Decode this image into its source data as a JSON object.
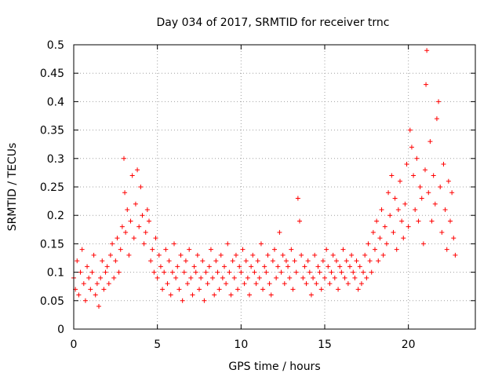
{
  "chart_data": {
    "type": "scatter",
    "title": "Day 034 of 2017, SRMTID for receiver trnc",
    "xlabel": "GPS time / hours",
    "ylabel": "SRMTID / TECUs",
    "xlim": [
      0,
      24
    ],
    "ylim": [
      0,
      0.5
    ],
    "xticks": [
      0,
      5,
      10,
      15,
      20
    ],
    "xtick_labels": [
      "0",
      "5",
      "10",
      "15",
      "20"
    ],
    "yticks": [
      0,
      0.05,
      0.1,
      0.15,
      0.2,
      0.25,
      0.3,
      0.35,
      0.4,
      0.45,
      0.5
    ],
    "ytick_labels": [
      "0",
      "0.05",
      "0.1",
      "0.15",
      "0.2",
      "0.25",
      "0.3",
      "0.35",
      "0.4",
      "0.45",
      "0.5"
    ],
    "grid": true,
    "marker": "+",
    "color": "#ff0000",
    "series": [
      {
        "name": "SRMTID trnc",
        "x": [
          0.0,
          0.1,
          0.2,
          0.3,
          0.4,
          0.5,
          0.6,
          0.7,
          0.8,
          0.9,
          1.0,
          1.1,
          1.2,
          1.3,
          1.4,
          1.5,
          1.6,
          1.7,
          1.8,
          1.9,
          2.0,
          2.1,
          2.2,
          2.3,
          2.4,
          2.5,
          2.6,
          2.7,
          2.8,
          2.9,
          3.0,
          3.05,
          3.1,
          3.2,
          3.3,
          3.4,
          3.5,
          3.6,
          3.7,
          3.8,
          3.9,
          4.0,
          4.1,
          4.2,
          4.3,
          4.4,
          4.5,
          4.6,
          4.7,
          4.8,
          4.9,
          5.0,
          5.1,
          5.2,
          5.3,
          5.4,
          5.5,
          5.6,
          5.7,
          5.8,
          5.9,
          6.0,
          6.1,
          6.2,
          6.3,
          6.4,
          6.5,
          6.6,
          6.7,
          6.8,
          6.9,
          7.0,
          7.1,
          7.2,
          7.3,
          7.4,
          7.5,
          7.6,
          7.7,
          7.8,
          7.9,
          8.0,
          8.1,
          8.2,
          8.3,
          8.4,
          8.5,
          8.6,
          8.7,
          8.8,
          8.9,
          9.0,
          9.1,
          9.2,
          9.3,
          9.4,
          9.5,
          9.6,
          9.7,
          9.8,
          9.9,
          10.0,
          10.1,
          10.2,
          10.3,
          10.4,
          10.5,
          10.6,
          10.7,
          10.8,
          10.9,
          11.0,
          11.1,
          11.2,
          11.3,
          11.4,
          11.5,
          11.6,
          11.7,
          11.8,
          11.9,
          12.0,
          12.1,
          12.2,
          12.3,
          12.4,
          12.5,
          12.6,
          12.7,
          12.8,
          12.9,
          13.0,
          13.1,
          13.2,
          13.3,
          13.4,
          13.5,
          13.6,
          13.7,
          13.8,
          13.9,
          14.0,
          14.1,
          14.2,
          14.3,
          14.4,
          14.5,
          14.6,
          14.7,
          14.8,
          14.9,
          15.0,
          15.1,
          15.2,
          15.3,
          15.4,
          15.5,
          15.6,
          15.7,
          15.8,
          15.9,
          16.0,
          16.1,
          16.2,
          16.3,
          16.4,
          16.5,
          16.6,
          16.7,
          16.8,
          16.9,
          17.0,
          17.1,
          17.2,
          17.3,
          17.4,
          17.5,
          17.6,
          17.7,
          17.8,
          17.9,
          18.0,
          18.1,
          18.2,
          18.3,
          18.4,
          18.5,
          18.6,
          18.7,
          18.8,
          18.9,
          19.0,
          19.1,
          19.2,
          19.3,
          19.4,
          19.5,
          19.6,
          19.7,
          19.8,
          19.9,
          20.0,
          20.1,
          20.2,
          20.3,
          20.4,
          20.5,
          20.6,
          20.7,
          20.8,
          20.9,
          21.0,
          21.05,
          21.1,
          21.2,
          21.3,
          21.4,
          21.5,
          21.6,
          21.7,
          21.8,
          21.9,
          22.0,
          22.1,
          22.2,
          22.3,
          22.4,
          22.5,
          22.6,
          22.7,
          22.8
        ],
        "y": [
          0.09,
          0.07,
          0.12,
          0.06,
          0.1,
          0.14,
          0.08,
          0.05,
          0.11,
          0.09,
          0.07,
          0.1,
          0.13,
          0.06,
          0.08,
          0.04,
          0.09,
          0.12,
          0.07,
          0.1,
          0.11,
          0.08,
          0.13,
          0.15,
          0.09,
          0.12,
          0.16,
          0.1,
          0.14,
          0.18,
          0.3,
          0.24,
          0.17,
          0.21,
          0.13,
          0.19,
          0.27,
          0.16,
          0.22,
          0.28,
          0.18,
          0.25,
          0.2,
          0.15,
          0.17,
          0.21,
          0.19,
          0.12,
          0.14,
          0.1,
          0.16,
          0.09,
          0.13,
          0.11,
          0.07,
          0.1,
          0.14,
          0.08,
          0.12,
          0.06,
          0.1,
          0.15,
          0.09,
          0.11,
          0.07,
          0.13,
          0.05,
          0.1,
          0.12,
          0.08,
          0.14,
          0.09,
          0.06,
          0.11,
          0.1,
          0.13,
          0.07,
          0.09,
          0.12,
          0.05,
          0.1,
          0.08,
          0.11,
          0.14,
          0.09,
          0.06,
          0.12,
          0.1,
          0.07,
          0.13,
          0.09,
          0.11,
          0.08,
          0.15,
          0.1,
          0.06,
          0.12,
          0.09,
          0.13,
          0.07,
          0.11,
          0.1,
          0.14,
          0.08,
          0.12,
          0.09,
          0.06,
          0.11,
          0.13,
          0.1,
          0.08,
          0.12,
          0.09,
          0.15,
          0.07,
          0.11,
          0.1,
          0.13,
          0.08,
          0.06,
          0.12,
          0.14,
          0.09,
          0.11,
          0.17,
          0.1,
          0.13,
          0.08,
          0.12,
          0.11,
          0.09,
          0.14,
          0.07,
          0.12,
          0.1,
          0.23,
          0.19,
          0.13,
          0.09,
          0.11,
          0.08,
          0.12,
          0.1,
          0.06,
          0.09,
          0.13,
          0.08,
          0.11,
          0.1,
          0.07,
          0.12,
          0.09,
          0.14,
          0.11,
          0.08,
          0.1,
          0.13,
          0.09,
          0.12,
          0.07,
          0.11,
          0.1,
          0.14,
          0.09,
          0.12,
          0.08,
          0.11,
          0.13,
          0.1,
          0.09,
          0.12,
          0.07,
          0.11,
          0.08,
          0.1,
          0.13,
          0.09,
          0.15,
          0.12,
          0.1,
          0.17,
          0.14,
          0.19,
          0.12,
          0.16,
          0.21,
          0.13,
          0.18,
          0.15,
          0.24,
          0.2,
          0.27,
          0.17,
          0.23,
          0.14,
          0.21,
          0.26,
          0.19,
          0.16,
          0.22,
          0.29,
          0.18,
          0.35,
          0.32,
          0.27,
          0.21,
          0.3,
          0.19,
          0.25,
          0.23,
          0.15,
          0.28,
          0.43,
          0.49,
          0.24,
          0.33,
          0.19,
          0.27,
          0.22,
          0.37,
          0.4,
          0.25,
          0.17,
          0.29,
          0.21,
          0.14,
          0.26,
          0.19,
          0.24,
          0.16,
          0.13
        ]
      }
    ]
  }
}
